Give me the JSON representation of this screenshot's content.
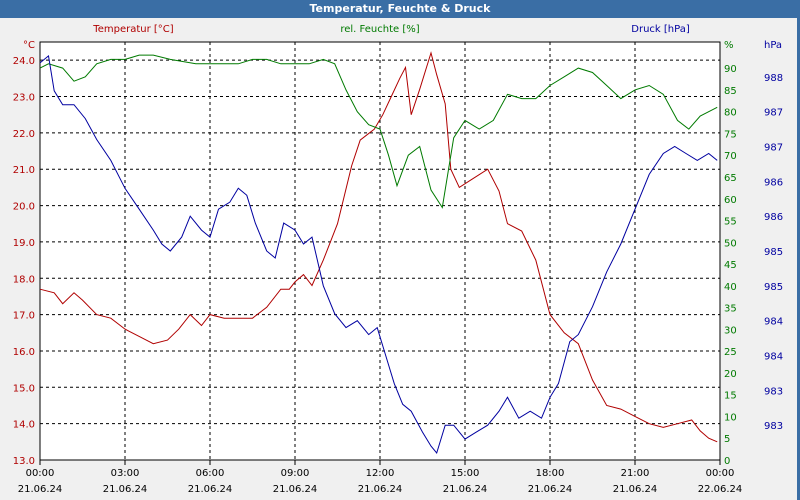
{
  "title": "Temperatur, Feuchte & Druck",
  "colors": {
    "temp": "#b00000",
    "hum": "#007a00",
    "press": "#0000a0",
    "grid": "#000000",
    "frame": "#3a6ea5"
  },
  "chart_data": {
    "type": "line",
    "x_axis": {
      "ticks": [
        {
          "time": "00:00",
          "date": "21.06.24"
        },
        {
          "time": "03:00",
          "date": "21.06.24"
        },
        {
          "time": "06:00",
          "date": "21.06.24"
        },
        {
          "time": "09:00",
          "date": "21.06.24"
        },
        {
          "time": "12:00",
          "date": "21.06.24"
        },
        {
          "time": "15:00",
          "date": "21.06.24"
        },
        {
          "time": "18:00",
          "date": "21.06.24"
        },
        {
          "time": "21:00",
          "date": "21.06.24"
        },
        {
          "time": "00:00",
          "date": "22.06.24"
        }
      ],
      "range_hours": [
        0,
        24
      ]
    },
    "axes": {
      "temp": {
        "label": "Temperatur [°C]",
        "unit": "°C",
        "range": [
          13.0,
          24.5
        ],
        "ticks": [
          "24.0",
          "23.0",
          "22.0",
          "21.0",
          "20.0",
          "19.0",
          "18.0",
          "17.0",
          "16.0",
          "15.0",
          "14.0",
          "13.0"
        ]
      },
      "hum": {
        "label": "rel. Feuchte [%]",
        "unit": "%",
        "range": [
          0,
          96
        ],
        "ticks": [
          "90",
          "85",
          "80",
          "75",
          "70",
          "65",
          "60",
          "55",
          "50",
          "45",
          "40",
          "35",
          "30",
          "25",
          "20",
          "15",
          "10",
          "5",
          "0"
        ]
      },
      "press": {
        "label": "Druck [hPa]",
        "unit": "hPa",
        "range": [
          982.5,
          988.5
        ],
        "ticks": [
          "988",
          "987",
          "987",
          "986",
          "986",
          "985",
          "985",
          "984",
          "984",
          "983",
          "983"
        ]
      }
    },
    "series": [
      {
        "name": "Temperatur",
        "axis": "temp",
        "points": [
          [
            0,
            17.7
          ],
          [
            0.5,
            17.6
          ],
          [
            0.8,
            17.3
          ],
          [
            1.2,
            17.6
          ],
          [
            1.5,
            17.4
          ],
          [
            2,
            17.0
          ],
          [
            2.5,
            16.9
          ],
          [
            3,
            16.6
          ],
          [
            3.5,
            16.4
          ],
          [
            4,
            16.2
          ],
          [
            4.5,
            16.3
          ],
          [
            4.9,
            16.6
          ],
          [
            5.3,
            17.0
          ],
          [
            5.7,
            16.7
          ],
          [
            6,
            17.0
          ],
          [
            6.5,
            16.9
          ],
          [
            7,
            16.9
          ],
          [
            7.5,
            16.9
          ],
          [
            8,
            17.2
          ],
          [
            8.5,
            17.7
          ],
          [
            8.8,
            17.7
          ],
          [
            9,
            17.9
          ],
          [
            9.3,
            18.1
          ],
          [
            9.6,
            17.8
          ],
          [
            10,
            18.5
          ],
          [
            10.5,
            19.5
          ],
          [
            11,
            21.1
          ],
          [
            11.3,
            21.8
          ],
          [
            11.8,
            22.1
          ],
          [
            12.1,
            22.5
          ],
          [
            12.4,
            23.0
          ],
          [
            12.7,
            23.5
          ],
          [
            12.9,
            23.8
          ],
          [
            13.1,
            22.5
          ],
          [
            13.4,
            23.2
          ],
          [
            13.8,
            24.2
          ],
          [
            14,
            23.6
          ],
          [
            14.3,
            22.8
          ],
          [
            14.5,
            21.0
          ],
          [
            14.8,
            20.5
          ],
          [
            15.2,
            20.7
          ],
          [
            15.8,
            21.0
          ],
          [
            16.2,
            20.4
          ],
          [
            16.5,
            19.5
          ],
          [
            17,
            19.3
          ],
          [
            17.5,
            18.5
          ],
          [
            18,
            17.0
          ],
          [
            18.5,
            16.5
          ],
          [
            19,
            16.2
          ],
          [
            19.5,
            15.2
          ],
          [
            20,
            14.5
          ],
          [
            20.5,
            14.4
          ],
          [
            21,
            14.2
          ],
          [
            21.5,
            14.0
          ],
          [
            22,
            13.9
          ],
          [
            22.5,
            14.0
          ],
          [
            23,
            14.1
          ],
          [
            23.3,
            13.8
          ],
          [
            23.6,
            13.6
          ],
          [
            23.9,
            13.5
          ]
        ]
      },
      {
        "name": "rel. Feuchte",
        "axis": "hum",
        "points": [
          [
            0,
            90
          ],
          [
            0.3,
            91
          ],
          [
            0.8,
            90
          ],
          [
            1.2,
            87
          ],
          [
            1.6,
            88
          ],
          [
            2,
            91
          ],
          [
            2.5,
            92
          ],
          [
            3,
            92
          ],
          [
            3.5,
            93
          ],
          [
            4,
            93
          ],
          [
            4.6,
            92
          ],
          [
            5.5,
            91
          ],
          [
            6,
            91
          ],
          [
            6.5,
            91
          ],
          [
            7,
            91
          ],
          [
            7.5,
            92
          ],
          [
            8,
            92
          ],
          [
            8.5,
            91
          ],
          [
            9,
            91
          ],
          [
            9.5,
            91
          ],
          [
            10,
            92
          ],
          [
            10.4,
            91
          ],
          [
            10.8,
            85
          ],
          [
            11.2,
            80
          ],
          [
            11.6,
            77
          ],
          [
            12,
            76
          ],
          [
            12.3,
            70
          ],
          [
            12.6,
            63
          ],
          [
            13,
            70
          ],
          [
            13.4,
            72
          ],
          [
            13.8,
            62
          ],
          [
            14.2,
            58
          ],
          [
            14.6,
            74
          ],
          [
            15,
            78
          ],
          [
            15.5,
            76
          ],
          [
            16,
            78
          ],
          [
            16.5,
            84
          ],
          [
            17,
            83
          ],
          [
            17.5,
            83
          ],
          [
            18,
            86
          ],
          [
            18.5,
            88
          ],
          [
            19,
            90
          ],
          [
            19.5,
            89
          ],
          [
            20,
            86
          ],
          [
            20.5,
            83
          ],
          [
            21,
            85
          ],
          [
            21.5,
            86
          ],
          [
            22,
            84
          ],
          [
            22.5,
            78
          ],
          [
            22.9,
            76
          ],
          [
            23.3,
            79
          ],
          [
            23.6,
            80
          ],
          [
            23.9,
            81
          ]
        ]
      },
      {
        "name": "Druck",
        "axis": "press",
        "points": [
          [
            0,
            988.2
          ],
          [
            0.3,
            988.3
          ],
          [
            0.5,
            987.8
          ],
          [
            0.8,
            987.6
          ],
          [
            1.2,
            987.6
          ],
          [
            1.6,
            987.4
          ],
          [
            2,
            987.1
          ],
          [
            2.5,
            986.8
          ],
          [
            3,
            986.4
          ],
          [
            3.5,
            986.1
          ],
          [
            4,
            985.8
          ],
          [
            4.3,
            985.6
          ],
          [
            4.6,
            985.5
          ],
          [
            5,
            985.7
          ],
          [
            5.3,
            986.0
          ],
          [
            5.7,
            985.8
          ],
          [
            6,
            985.7
          ],
          [
            6.3,
            986.1
          ],
          [
            6.7,
            986.2
          ],
          [
            7,
            986.4
          ],
          [
            7.3,
            986.3
          ],
          [
            7.6,
            985.9
          ],
          [
            8,
            985.5
          ],
          [
            8.3,
            985.4
          ],
          [
            8.6,
            985.9
          ],
          [
            9,
            985.8
          ],
          [
            9.3,
            985.6
          ],
          [
            9.6,
            985.7
          ],
          [
            10,
            985.0
          ],
          [
            10.4,
            984.6
          ],
          [
            10.8,
            984.4
          ],
          [
            11.2,
            984.5
          ],
          [
            11.6,
            984.3
          ],
          [
            11.9,
            984.4
          ],
          [
            12.2,
            984.0
          ],
          [
            12.5,
            983.6
          ],
          [
            12.8,
            983.3
          ],
          [
            13.1,
            983.2
          ],
          [
            13.5,
            982.9
          ],
          [
            13.8,
            982.7
          ],
          [
            14,
            982.6
          ],
          [
            14.3,
            983.0
          ],
          [
            14.6,
            983.0
          ],
          [
            15,
            982.8
          ],
          [
            15.4,
            982.9
          ],
          [
            15.8,
            983.0
          ],
          [
            16.2,
            983.2
          ],
          [
            16.5,
            983.4
          ],
          [
            16.9,
            983.1
          ],
          [
            17.3,
            983.2
          ],
          [
            17.7,
            983.1
          ],
          [
            18,
            983.4
          ],
          [
            18.3,
            983.6
          ],
          [
            18.7,
            984.2
          ],
          [
            19,
            984.3
          ],
          [
            19.5,
            984.7
          ],
          [
            20,
            985.2
          ],
          [
            20.5,
            985.6
          ],
          [
            21,
            986.1
          ],
          [
            21.5,
            986.6
          ],
          [
            22,
            986.9
          ],
          [
            22.4,
            987.0
          ],
          [
            22.8,
            986.9
          ],
          [
            23.2,
            986.8
          ],
          [
            23.6,
            986.9
          ],
          [
            23.9,
            986.8
          ]
        ]
      }
    ]
  }
}
